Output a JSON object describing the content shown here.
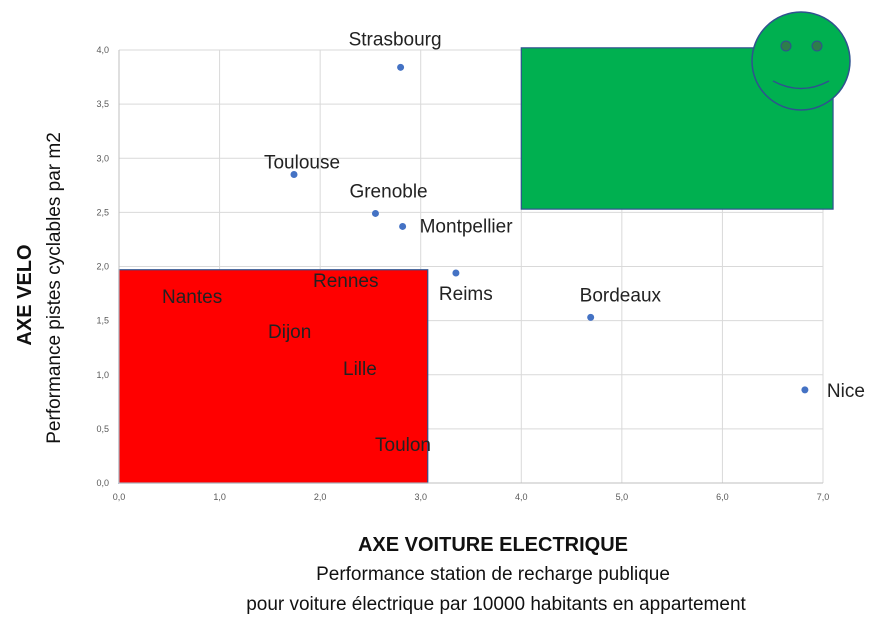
{
  "chart_data": {
    "type": "scatter",
    "xlim": [
      0,
      7
    ],
    "ylim": [
      0,
      4
    ],
    "x_ticks": [
      "0,0",
      "1,0",
      "2,0",
      "3,0",
      "4,0",
      "5,0",
      "6,0",
      "7,0"
    ],
    "y_ticks": [
      "0,0",
      "0,5",
      "1,0",
      "1,5",
      "2,0",
      "2,5",
      "3,0",
      "3,5",
      "4,0"
    ],
    "grid": true,
    "ylabel_bold": "AXE VELO",
    "ylabel": "Performance pistes cyclables par m2",
    "xlabel_bold": "AXE VOITURE ELECTRIQUE",
    "xlabel_line1": "Performance station de recharge publique",
    "xlabel_line2": "pour voiture électrique par 10000 habitants en appartement",
    "points": [
      {
        "label": "Strasbourg",
        "x": 2.8,
        "y": 3.84
      },
      {
        "label": "Toulouse",
        "x": 1.74,
        "y": 2.85
      },
      {
        "label": "Grenoble",
        "x": 2.55,
        "y": 2.49
      },
      {
        "label": "Montpellier",
        "x": 2.82,
        "y": 2.37
      },
      {
        "label": "Reims",
        "x": 3.35,
        "y": 1.94
      },
      {
        "label": "Bordeaux",
        "x": 4.69,
        "y": 1.53
      },
      {
        "label": "Nice",
        "x": 6.82,
        "y": 0.86
      }
    ],
    "zone_labels": [
      "Nantes",
      "Rennes",
      "Dijon",
      "Lille",
      "Toulon"
    ],
    "regions": [
      {
        "name": "low-zone",
        "color": "#ff0000",
        "x0": 0.0,
        "x1": 3.07,
        "y0": 0.0,
        "y1": 1.97
      },
      {
        "name": "high-zone",
        "color": "#00b050",
        "x0": 4.0,
        "x1": 7.1,
        "y0": 2.53,
        "y1": 4.02
      }
    ],
    "point_color": "#4472c4",
    "smiley_color": "#00b050"
  }
}
